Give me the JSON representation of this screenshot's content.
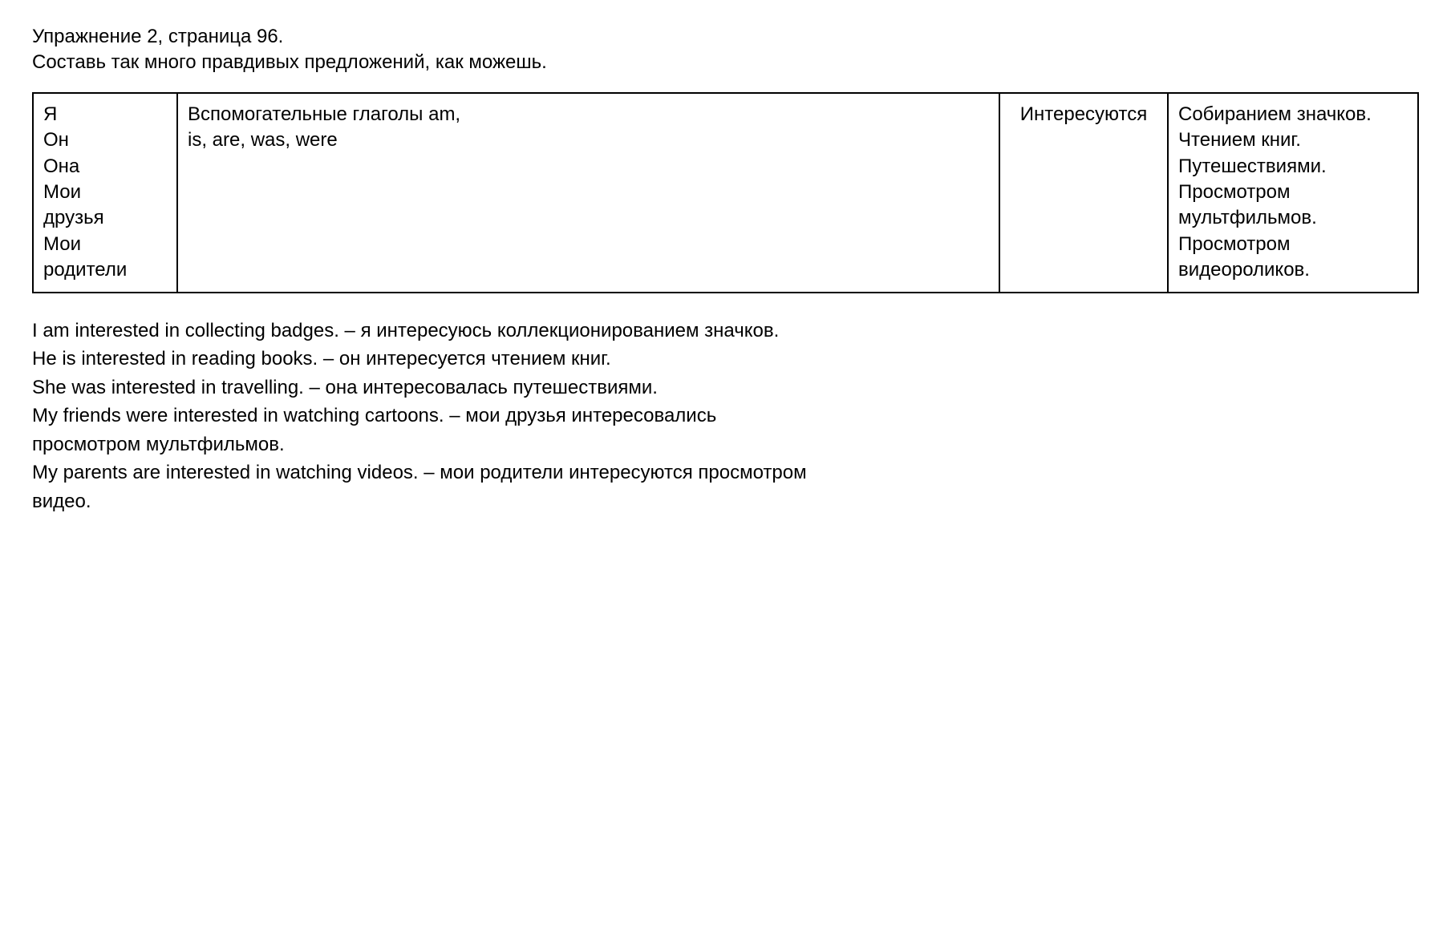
{
  "header": {
    "title": "Упражнение 2, страница 96.",
    "instruction": "Составь так много правдивых предложений, как можешь."
  },
  "table": {
    "col1_lines": [
      "Я",
      "Он",
      "Она",
      "Мои",
      "друзья",
      "Мои",
      "родители"
    ],
    "col2_lines": [
      "Вспомогательные глаголы am,",
      "is, are, was, were"
    ],
    "col3_lines": [
      "Интересуются"
    ],
    "col4_lines": [
      "Собиранием значков.",
      "Чтением книг.",
      "Путешествиями.",
      "Просмотром",
      "мультфильмов.",
      "Просмотром",
      "видеороликов."
    ]
  },
  "sentences": {
    "s1": "I am interested in collecting badges. – я интересуюсь коллекционированием значков.",
    "s2": "He is interested in reading books. – он интересуется чтением книг.",
    "s3": "She was interested in travelling. – она интересовалась путешествиями.",
    "s4": "My friends were interested in watching cartoons. – мои друзья интересовались",
    "s4b": "просмотром мультфильмов.",
    "s5": "My parents are interested in watching videos. – мои родители интересуются просмотром",
    "s5b": "видео."
  },
  "colors": {
    "text": "#000000",
    "background": "#ffffff",
    "border": "#000000"
  },
  "typography": {
    "body_fontsize": 24,
    "font_family": "Arial"
  }
}
